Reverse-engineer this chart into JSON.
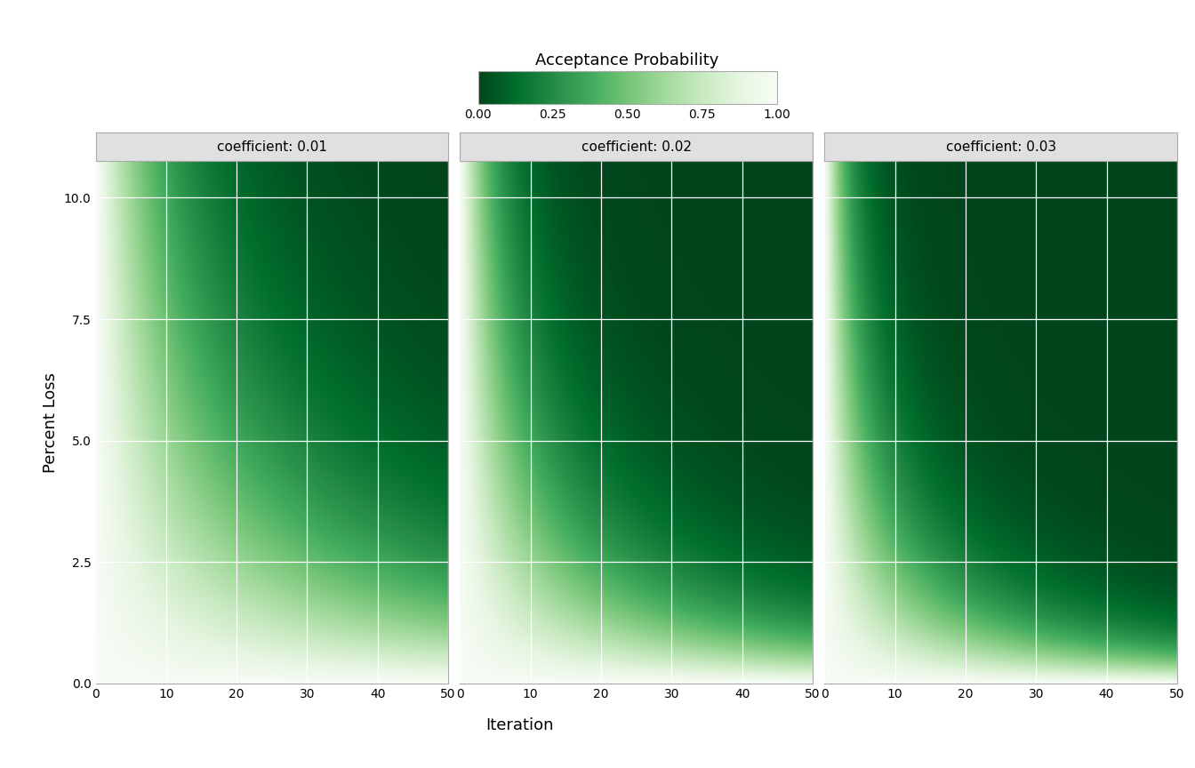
{
  "coefficients": [
    0.01,
    0.02,
    0.03
  ],
  "iteration_range": [
    0,
    50
  ],
  "loss_range": [
    0.0,
    10.75
  ],
  "iteration_steps": 300,
  "loss_steps": 300,
  "colormap_colors": [
    "#f7fcf5",
    "#e5f5e0",
    "#c7e9c0",
    "#a1d99b",
    "#74c476",
    "#41ab5d",
    "#238b45",
    "#006d2c",
    "#00441b"
  ],
  "title": "Acceptance Probability",
  "xlabel": "Iteration",
  "ylabel": "Percent Loss",
  "subplot_titles": [
    "coefficient: 0.01",
    "coefficient: 0.02",
    "coefficient: 0.03"
  ],
  "colorbar_ticks": [
    0.0,
    0.25,
    0.5,
    0.75,
    1.0
  ],
  "colorbar_tick_labels": [
    "0.00",
    "0.25",
    "0.50",
    "0.75",
    "1.00"
  ],
  "vmin": 0.0,
  "vmax": 1.0,
  "background_color": "#ffffff",
  "panel_facecolor": "#f2f2f2",
  "strip_facecolor": "#e0e0e0",
  "strip_edgecolor": "#c0c0c0",
  "grid_color": "#ffffff",
  "yticks": [
    0.0,
    2.5,
    5.0,
    7.5,
    10.0
  ],
  "xticks": [
    0,
    10,
    20,
    30,
    40,
    50
  ],
  "tick_labelsize": 10,
  "axis_labelsize": 13,
  "title_fontsize": 13,
  "strip_fontsize": 11
}
